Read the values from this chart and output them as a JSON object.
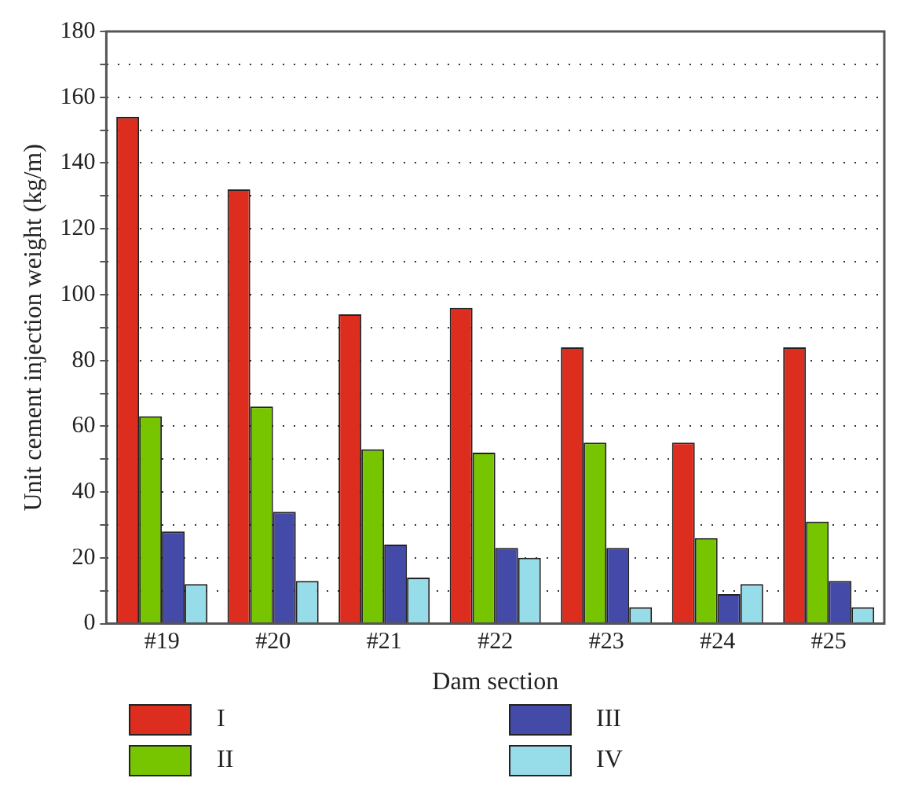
{
  "chart_data": {
    "type": "bar",
    "xlabel": "Dam section",
    "ylabel": "Unit cement injection weight (kg/m)",
    "categories": [
      "#19",
      "#20",
      "#21",
      "#22",
      "#23",
      "#24",
      "#25"
    ],
    "series": [
      {
        "name": "I",
        "color": "#dc2d1e",
        "values": [
          154,
          132,
          94,
          96,
          84,
          55,
          84
        ]
      },
      {
        "name": "II",
        "color": "#76c500",
        "values": [
          63,
          66,
          53,
          52,
          55,
          26,
          31
        ]
      },
      {
        "name": "III",
        "color": "#434aa8",
        "values": [
          28,
          34,
          24,
          23,
          23,
          9,
          13
        ]
      },
      {
        "name": "IV",
        "color": "#97dde9",
        "values": [
          12,
          13,
          14,
          20,
          5,
          12,
          5
        ]
      }
    ],
    "ylim": [
      0,
      180
    ],
    "yticks": [
      0,
      {
        "value": 10,
        "label": null
      },
      20,
      {
        "value": 30,
        "label": null
      },
      40,
      {
        "value": 50,
        "label": null
      },
      60,
      {
        "value": 70,
        "label": null
      },
      80,
      {
        "value": 90,
        "label": null
      },
      100,
      {
        "value": 110,
        "label": null
      },
      120,
      {
        "value": 130,
        "label": null
      },
      140,
      {
        "value": 150,
        "label": null
      },
      160,
      {
        "value": 170,
        "label": null
      },
      180
    ],
    "grid": "y",
    "legend": "bottom"
  }
}
